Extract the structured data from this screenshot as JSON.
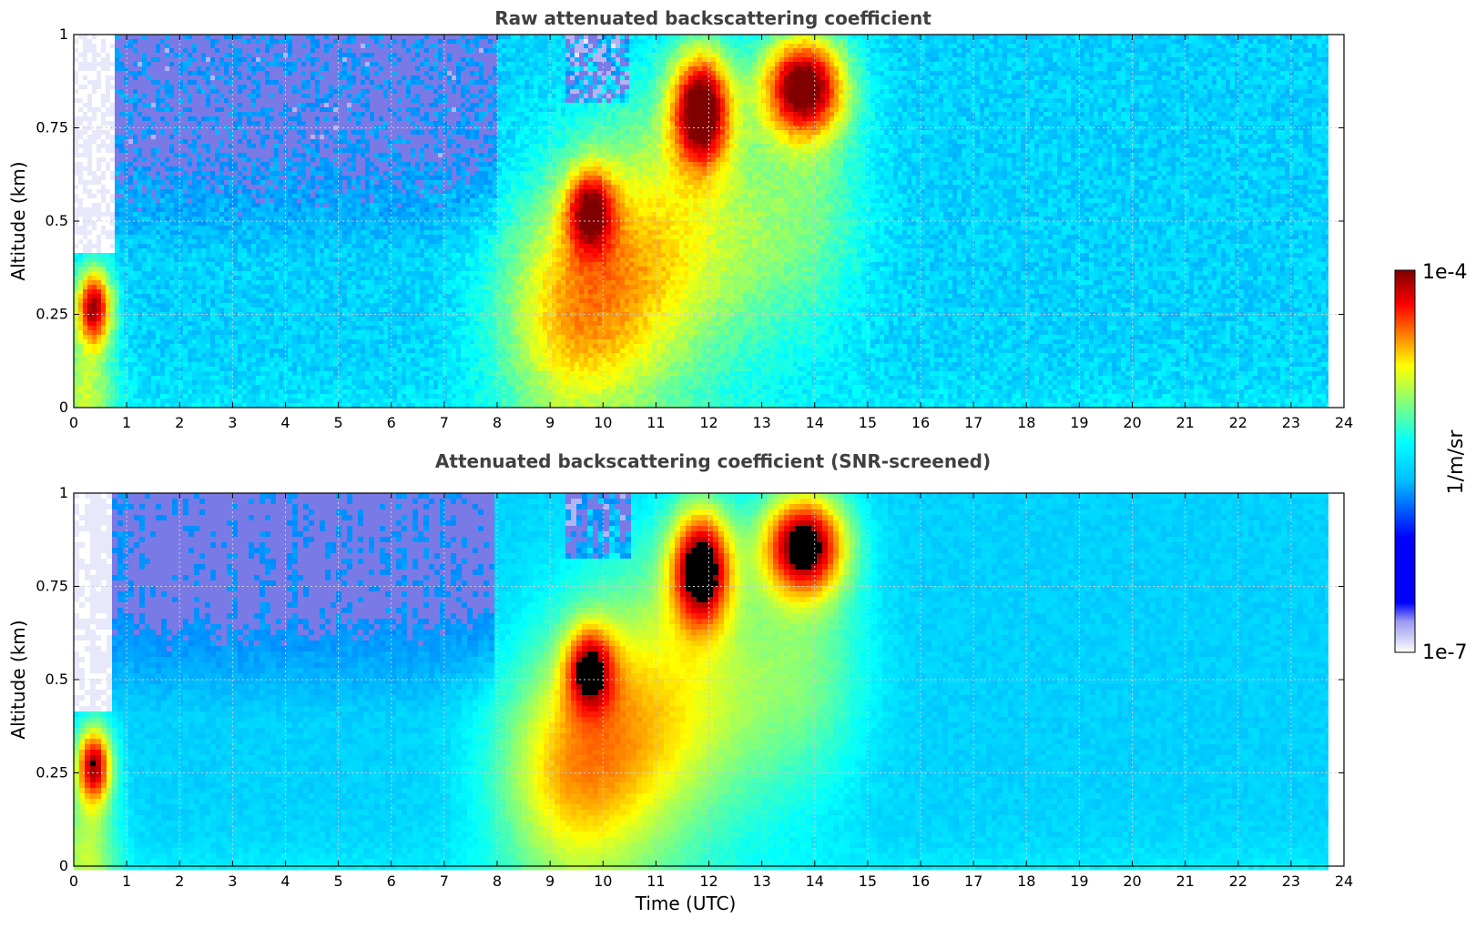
{
  "chart_data": [
    {
      "type": "heatmap",
      "title": "Raw attenuated backscattering coefficient",
      "xlabel": "",
      "ylabel": "Altitude (km)",
      "xlim": [
        0,
        24
      ],
      "ylim": [
        0,
        1
      ],
      "xticks": [
        "0",
        "1",
        "2",
        "3",
        "4",
        "5",
        "6",
        "7",
        "8",
        "9",
        "10",
        "11",
        "12",
        "13",
        "14",
        "15",
        "16",
        "17",
        "18",
        "19",
        "20",
        "21",
        "22",
        "23",
        "24"
      ],
      "yticks": [
        "0",
        "0.25",
        "0.5",
        "0.75",
        "1"
      ],
      "data_extent_hours": [
        0,
        23.7
      ],
      "grid": true,
      "screened": false,
      "features": [
        {
          "time": [
            0,
            0.8
          ],
          "altitude": [
            0.15,
            0.4
          ],
          "level": "1e-4"
        },
        {
          "time": [
            9.2,
            10.1
          ],
          "altitude": [
            0.4,
            0.65
          ],
          "level": "high"
        },
        {
          "time": [
            11.2,
            12.4
          ],
          "altitude": [
            0.6,
            1.0
          ],
          "level": "1e-4"
        },
        {
          "time": [
            12.9,
            14.8
          ],
          "altitude": [
            0.65,
            1.0
          ],
          "level": "1e-4"
        }
      ]
    },
    {
      "type": "heatmap",
      "title": "Attenuated backscattering coefficient (SNR-screened)",
      "xlabel": "Time (UTC)",
      "ylabel": "Altitude (km)",
      "xlim": [
        0,
        24
      ],
      "ylim": [
        0,
        1
      ],
      "xticks": [
        "0",
        "1",
        "2",
        "3",
        "4",
        "5",
        "6",
        "7",
        "8",
        "9",
        "10",
        "11",
        "12",
        "13",
        "14",
        "15",
        "16",
        "17",
        "18",
        "19",
        "20",
        "21",
        "22",
        "23",
        "24"
      ],
      "yticks": [
        "0",
        "0.25",
        "0.5",
        "0.75",
        "1"
      ],
      "data_extent_hours": [
        0,
        23.7
      ],
      "grid": true,
      "screened": true,
      "features": [
        {
          "time": [
            0,
            0.8
          ],
          "altitude": [
            0.15,
            0.4
          ],
          "level": "saturated"
        },
        {
          "time": [
            9.2,
            10.1
          ],
          "altitude": [
            0.4,
            0.65
          ],
          "level": "high"
        },
        {
          "time": [
            11.2,
            12.4
          ],
          "altitude": [
            0.6,
            1.0
          ],
          "level": "saturated"
        },
        {
          "time": [
            12.9,
            14.8
          ],
          "altitude": [
            0.65,
            1.0
          ],
          "level": "saturated"
        }
      ]
    }
  ],
  "colorbar": {
    "label": "1/m/sr",
    "max_label": "1e-4",
    "min_label": "1e-7",
    "colormap": "jet"
  }
}
